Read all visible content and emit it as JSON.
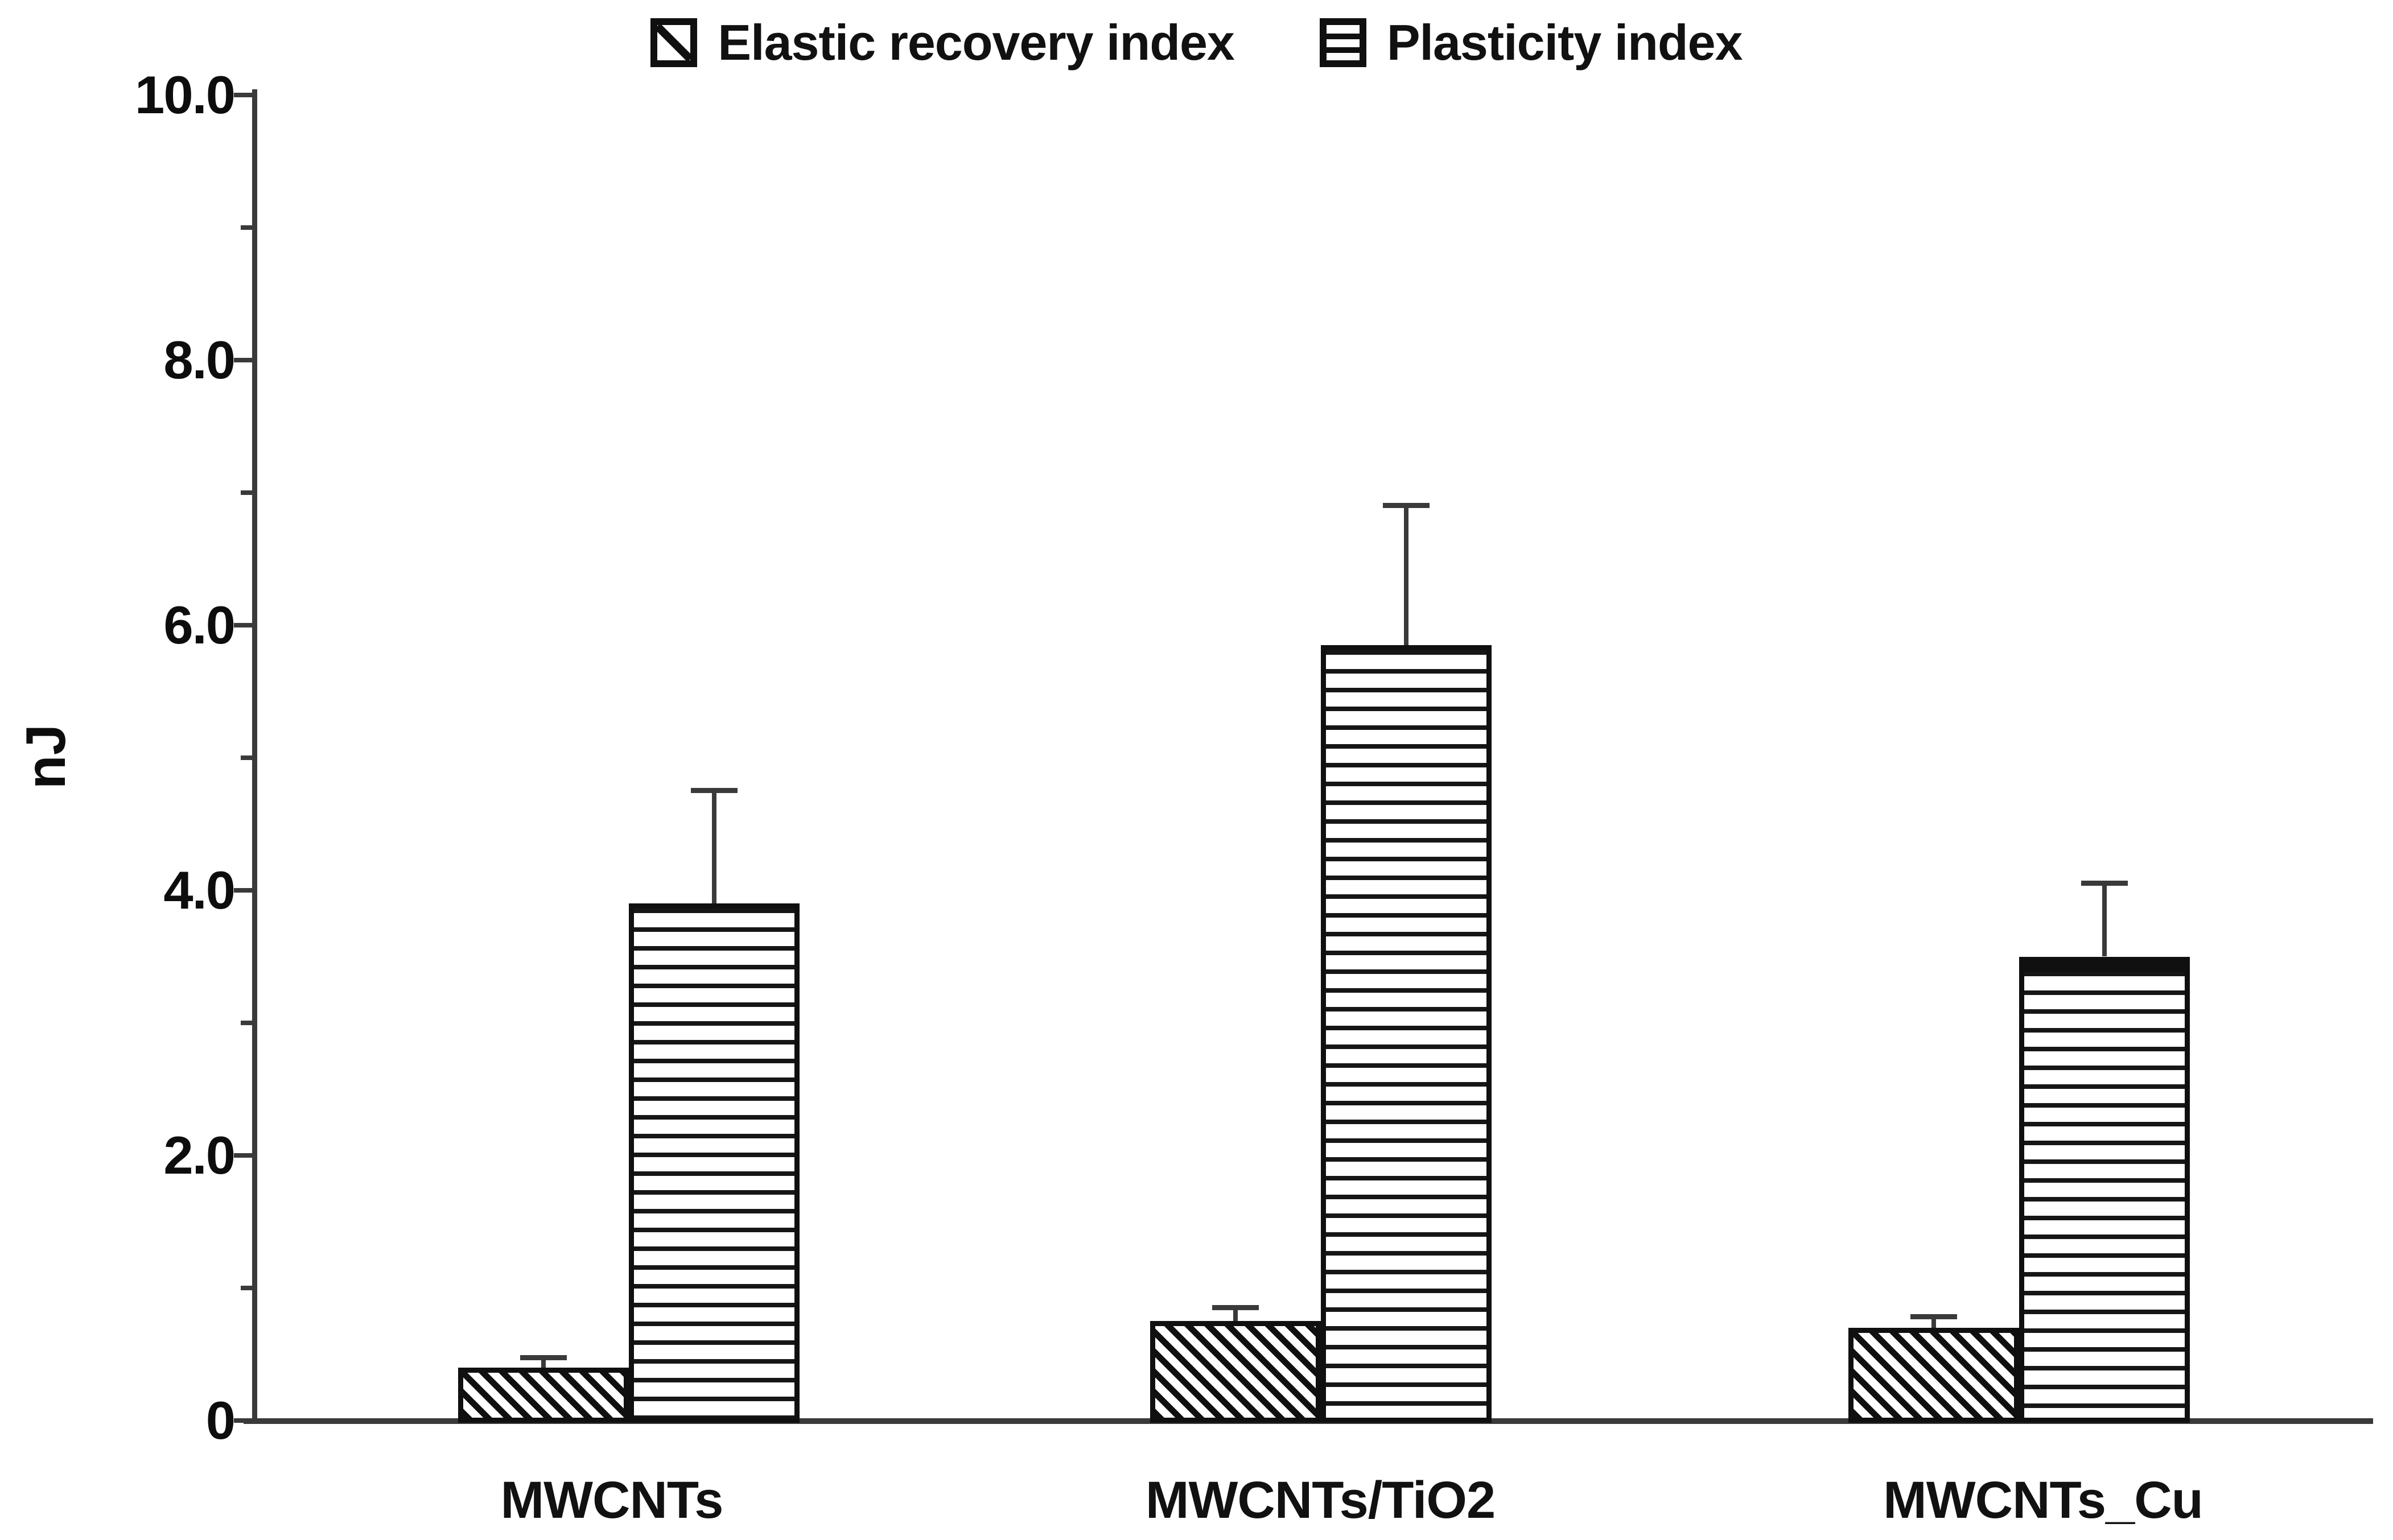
{
  "colors": {
    "ink": "#111111",
    "axis": "#3a3a3a",
    "background": "#ffffff"
  },
  "y_axis": {
    "title": "nJ"
  },
  "legend": {
    "items": [
      {
        "label": "Elastic recovery index",
        "swatch": "diagonal-hatch-swatch"
      },
      {
        "label": "Plasticity index",
        "swatch": "horizontal-lines-swatch"
      }
    ]
  },
  "chart_data": {
    "type": "bar",
    "title": "",
    "xlabel": "",
    "ylabel": "nJ",
    "categories": [
      "MWCNTs",
      "MWCNTs/TiO2",
      "MWCNTs_Cu"
    ],
    "series": [
      {
        "name": "Elastic recovery index",
        "pattern": "diagonal-hatch",
        "values": [
          0.4,
          0.75,
          0.7
        ],
        "errors_plus": [
          0.07,
          0.1,
          0.08
        ]
      },
      {
        "name": "Plasticity index",
        "pattern": "horizontal-lines",
        "values": [
          3.9,
          5.85,
          3.5
        ],
        "errors_plus": [
          0.85,
          1.05,
          0.55
        ],
        "thick_top_category_index": 2
      }
    ],
    "ylim": [
      0,
      10
    ],
    "ytick_values": [
      0,
      2,
      4,
      6,
      8,
      10
    ],
    "ytick_labels": [
      "0",
      "2.0",
      "4.0",
      "6.0",
      "8.0",
      "10.0"
    ],
    "minor_ytick_values": [
      1,
      3,
      5,
      7,
      9
    ],
    "legend_position": "top",
    "grid": false,
    "error_bars": "plus-direction-only"
  }
}
